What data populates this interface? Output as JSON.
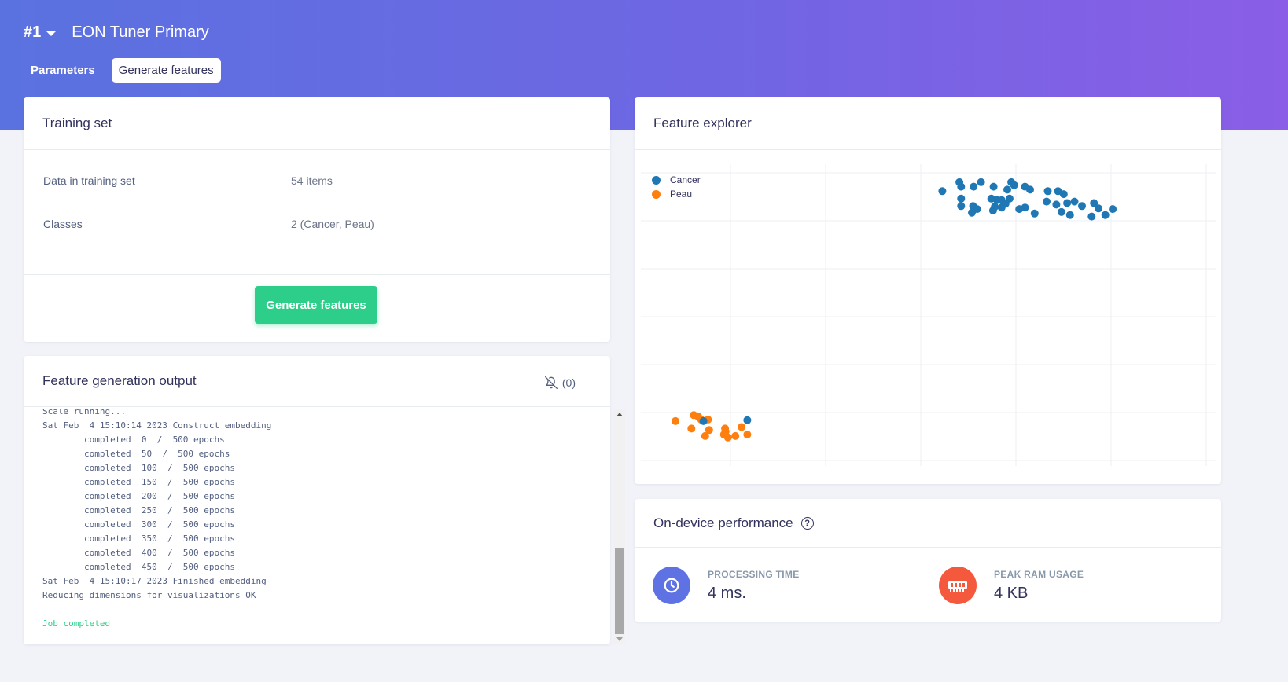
{
  "header": {
    "impulse_number": "#1",
    "impulse_name": "EON Tuner Primary",
    "tabs": [
      {
        "label": "Parameters",
        "active": false
      },
      {
        "label": "Generate features",
        "active": true
      }
    ],
    "gradient_colors": [
      "#5a72e0",
      "#8a5ee6"
    ]
  },
  "training_set": {
    "title": "Training set",
    "rows": [
      {
        "label": "Data in training set",
        "value": "54 items"
      },
      {
        "label": "Classes",
        "value": "2 (Cancer, Peau)"
      }
    ],
    "button_label": "Generate features",
    "button_color": "#2dce89"
  },
  "output": {
    "title": "Feature generation output",
    "notifications": "(0)",
    "log_lines": [
      "Scale running...",
      "Sat Feb  4 15:10:14 2023 Construct embedding",
      "        completed  0  /  500 epochs",
      "        completed  50  /  500 epochs",
      "        completed  100  /  500 epochs",
      "        completed  150  /  500 epochs",
      "        completed  200  /  500 epochs",
      "        completed  250  /  500 epochs",
      "        completed  300  /  500 epochs",
      "        completed  350  /  500 epochs",
      "        completed  400  /  500 epochs",
      "        completed  450  /  500 epochs",
      "Sat Feb  4 15:10:17 2023 Finished embedding",
      "Reducing dimensions for visualizations OK",
      ""
    ],
    "status": "Job completed"
  },
  "feature_explorer": {
    "title": "Feature explorer",
    "chart_data": {
      "type": "scatter",
      "grid": true,
      "legend_position": "top-left",
      "xlim": [
        0,
        100
      ],
      "ylim": [
        0,
        100
      ],
      "series": [
        {
          "name": "Cancer",
          "color": "#1f77b4",
          "points": [
            [
              52.6,
              91.5
            ],
            [
              55.6,
              94.5
            ],
            [
              55.9,
              89.0
            ],
            [
              55.9,
              93.0
            ],
            [
              58.1,
              93.0
            ],
            [
              59.4,
              94.5
            ],
            [
              61.6,
              93.0
            ],
            [
              64.7,
              94.5
            ],
            [
              64.0,
              92.0
            ],
            [
              65.2,
              93.5
            ],
            [
              67.1,
              93.0
            ],
            [
              68.0,
              92.0
            ],
            [
              71.1,
              91.5
            ],
            [
              72.9,
              91.5
            ],
            [
              73.9,
              90.5
            ],
            [
              55.9,
              86.5
            ],
            [
              58.0,
              86.5
            ],
            [
              58.7,
              85.5
            ],
            [
              57.8,
              84.3
            ],
            [
              61.2,
              89.0
            ],
            [
              62.2,
              88.5
            ],
            [
              63.0,
              86.0
            ],
            [
              64.4,
              89.0
            ],
            [
              67.1,
              86.0
            ],
            [
              70.9,
              88.0
            ],
            [
              72.6,
              87.0
            ],
            [
              75.8,
              88.0
            ],
            [
              79.2,
              87.5
            ],
            [
              80.0,
              85.7
            ],
            [
              82.5,
              85.5
            ],
            [
              61.5,
              85.0
            ],
            [
              61.8,
              86.3
            ],
            [
              63.7,
              87.3
            ],
            [
              66.1,
              85.5
            ],
            [
              68.8,
              84.0
            ],
            [
              73.5,
              84.5
            ],
            [
              77.1,
              86.5
            ],
            [
              75.0,
              83.5
            ],
            [
              78.8,
              83.0
            ],
            [
              81.2,
              83.5
            ],
            [
              74.5,
              87.5
            ],
            [
              63.0,
              88.5
            ]
          ]
        },
        {
          "name": "Peau",
          "color": "#ff7f0e",
          "points": [
            [
              5.8,
              14.5
            ],
            [
              9.8,
              16.0
            ],
            [
              10.3,
              15.0
            ],
            [
              11.5,
              15.0
            ],
            [
              8.6,
              12.0
            ],
            [
              11.7,
              11.5
            ],
            [
              14.6,
              11.0
            ],
            [
              17.4,
              12.5
            ],
            [
              15.0,
              9.0
            ],
            [
              14.3,
              10.0
            ],
            [
              11.0,
              9.5
            ],
            [
              16.3,
              9.5
            ],
            [
              18.4,
              10.0
            ],
            [
              14.5,
              12.0
            ],
            [
              9.0,
              16.5
            ]
          ]
        }
      ],
      "extra_points_cancer_near_peau": [
        [
          10.7,
          14.5
        ],
        [
          18.4,
          14.8
        ]
      ]
    }
  },
  "performance": {
    "title": "On-device performance",
    "metrics": [
      {
        "label": "PROCESSING TIME",
        "value": "4 ms.",
        "icon": "clock-icon",
        "color": "#5e72e4"
      },
      {
        "label": "PEAK RAM USAGE",
        "value": "4 KB",
        "icon": "memory-icon",
        "color": "#f5593d"
      }
    ]
  }
}
